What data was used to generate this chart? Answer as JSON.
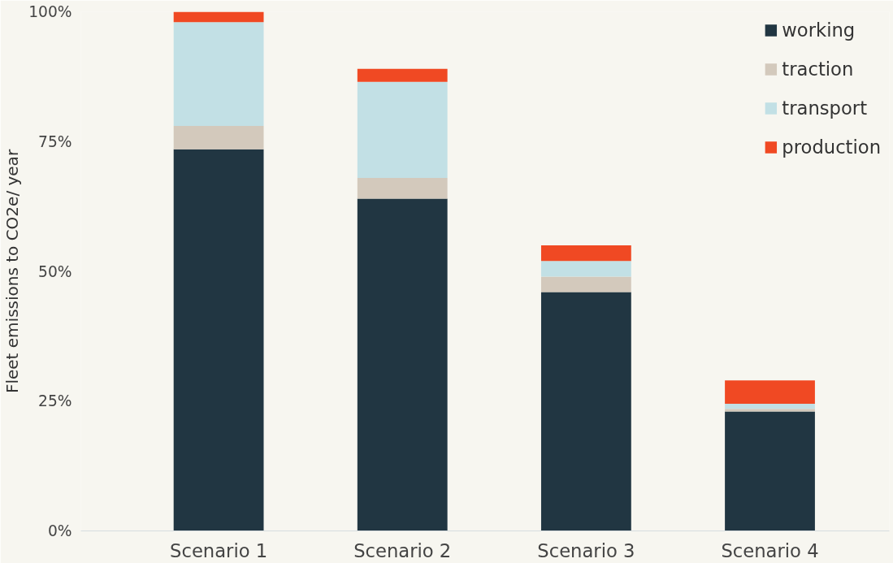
{
  "chart_data": {
    "type": "bar",
    "stacked": true,
    "ylabel": "Fleet emissions to CO2e/ year",
    "categories": [
      "Scenario 1",
      "Scenario 2",
      "Scenario 3",
      "Scenario 4"
    ],
    "series": [
      {
        "name": "working",
        "color": "#213642",
        "values": [
          73.5,
          64,
          46,
          23
        ]
      },
      {
        "name": "traction",
        "color": "#d3c9bc",
        "values": [
          4.5,
          4,
          3,
          0.5
        ]
      },
      {
        "name": "transport",
        "color": "#c2e0e5",
        "values": [
          20,
          18.5,
          3,
          1
        ]
      },
      {
        "name": "production",
        "color": "#f04923",
        "values": [
          2,
          2.5,
          3,
          4.5
        ]
      }
    ],
    "ylim": [
      0,
      100
    ],
    "yticks": [
      {
        "value": 0,
        "label": "0%"
      },
      {
        "value": 25,
        "label": "25%"
      },
      {
        "value": 50,
        "label": "50%"
      },
      {
        "value": 75,
        "label": "75%"
      },
      {
        "value": 100,
        "label": "100%"
      }
    ],
    "grid": false,
    "legend": "top right"
  }
}
